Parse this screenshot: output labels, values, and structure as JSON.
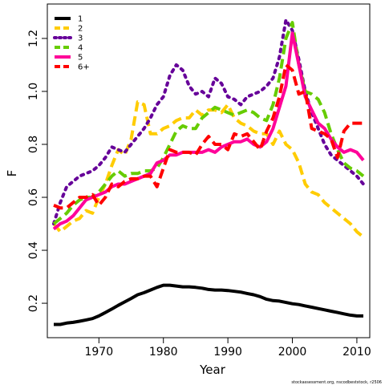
{
  "chart_data": {
    "type": "line",
    "title": "",
    "xlabel": "Year",
    "ylabel": "F",
    "xlim": [
      1962,
      2012
    ],
    "ylim": [
      0.07,
      1.33
    ],
    "x_ticks": [
      1970,
      1980,
      1990,
      2000,
      2010
    ],
    "y_ticks": [
      0.2,
      0.4,
      0.6,
      0.8,
      1.0,
      1.2
    ],
    "x_tick_labels": [
      "1970",
      "1980",
      "1990",
      "2000",
      "2010"
    ],
    "y_tick_labels": [
      "0.2",
      "0.4",
      "0.6",
      "0.8",
      "1.0",
      "1.2"
    ],
    "grid": false,
    "legend_position": "top-left",
    "credit": "stockassessment.org, nscodbeststock, r2506",
    "x": [
      1963,
      1964,
      1965,
      1966,
      1967,
      1968,
      1969,
      1970,
      1971,
      1972,
      1973,
      1974,
      1975,
      1976,
      1977,
      1978,
      1979,
      1980,
      1981,
      1982,
      1983,
      1984,
      1985,
      1986,
      1987,
      1988,
      1989,
      1990,
      1991,
      1992,
      1993,
      1994,
      1995,
      1996,
      1997,
      1998,
      1999,
      2000,
      2001,
      2002,
      2003,
      2004,
      2005,
      2006,
      2007,
      2008,
      2009,
      2010,
      2011
    ],
    "series": [
      {
        "name": "1",
        "color": "#000000",
        "dash": "solid",
        "width": 4,
        "values": [
          0.12,
          0.12,
          0.125,
          0.128,
          0.132,
          0.137,
          0.142,
          0.152,
          0.165,
          0.178,
          0.192,
          0.205,
          0.218,
          0.232,
          0.24,
          0.25,
          0.26,
          0.268,
          0.268,
          0.265,
          0.262,
          0.262,
          0.26,
          0.257,
          0.252,
          0.25,
          0.25,
          0.248,
          0.245,
          0.242,
          0.237,
          0.232,
          0.225,
          0.215,
          0.21,
          0.208,
          0.203,
          0.198,
          0.195,
          0.19,
          0.185,
          0.18,
          0.175,
          0.17,
          0.165,
          0.16,
          0.155,
          0.152,
          0.152
        ]
      },
      {
        "name": "2",
        "color": "#ffcc00",
        "dash": "dashed",
        "width": 4,
        "values": [
          0.5,
          0.47,
          0.49,
          0.51,
          0.52,
          0.55,
          0.54,
          0.6,
          0.65,
          0.72,
          0.78,
          0.76,
          0.82,
          0.96,
          0.95,
          0.84,
          0.84,
          0.86,
          0.87,
          0.89,
          0.9,
          0.9,
          0.93,
          0.91,
          0.93,
          0.93,
          0.92,
          0.95,
          0.9,
          0.88,
          0.87,
          0.85,
          0.84,
          0.84,
          0.8,
          0.85,
          0.8,
          0.78,
          0.73,
          0.65,
          0.62,
          0.61,
          0.58,
          0.56,
          0.54,
          0.52,
          0.5,
          0.47,
          0.45
        ]
      },
      {
        "name": "3",
        "color": "#660099",
        "dash": "dotted",
        "width": 4,
        "values": [
          0.5,
          0.58,
          0.64,
          0.66,
          0.68,
          0.69,
          0.7,
          0.72,
          0.75,
          0.79,
          0.78,
          0.77,
          0.8,
          0.83,
          0.86,
          0.9,
          0.95,
          0.98,
          1.06,
          1.1,
          1.08,
          1.02,
          0.99,
          1.0,
          0.98,
          1.05,
          1.03,
          0.98,
          0.97,
          0.95,
          0.98,
          0.99,
          1.0,
          1.02,
          1.05,
          1.13,
          1.27,
          1.23,
          1.12,
          1.0,
          0.92,
          0.86,
          0.8,
          0.76,
          0.74,
          0.72,
          0.7,
          0.68,
          0.65
        ]
      },
      {
        "name": "4",
        "color": "#66cc00",
        "dash": "dashed",
        "width": 4,
        "values": [
          0.5,
          0.52,
          0.54,
          0.57,
          0.59,
          0.6,
          0.6,
          0.62,
          0.65,
          0.68,
          0.7,
          0.68,
          0.69,
          0.69,
          0.7,
          0.7,
          0.71,
          0.75,
          0.8,
          0.85,
          0.87,
          0.86,
          0.86,
          0.9,
          0.92,
          0.94,
          0.93,
          0.92,
          0.91,
          0.92,
          0.93,
          0.92,
          0.9,
          0.89,
          0.95,
          1.05,
          1.2,
          1.26,
          1.1,
          1.0,
          0.99,
          0.97,
          0.92,
          0.84,
          0.78,
          0.73,
          0.71,
          0.7,
          0.68
        ]
      },
      {
        "name": "5",
        "color": "#ff0099",
        "dash": "solid",
        "width": 4,
        "values": [
          0.48,
          0.5,
          0.51,
          0.53,
          0.56,
          0.59,
          0.6,
          0.61,
          0.62,
          0.64,
          0.65,
          0.65,
          0.66,
          0.67,
          0.68,
          0.69,
          0.73,
          0.74,
          0.76,
          0.76,
          0.77,
          0.77,
          0.77,
          0.77,
          0.78,
          0.77,
          0.79,
          0.8,
          0.81,
          0.81,
          0.82,
          0.8,
          0.79,
          0.81,
          0.86,
          0.94,
          1.02,
          1.22,
          1.1,
          0.98,
          0.93,
          0.88,
          0.86,
          0.82,
          0.79,
          0.77,
          0.78,
          0.77,
          0.74
        ]
      },
      {
        "name": "6+",
        "color": "#ff0000",
        "dash": "dashed",
        "width": 4,
        "values": [
          0.57,
          0.56,
          0.56,
          0.58,
          0.6,
          0.6,
          0.61,
          0.57,
          0.6,
          0.65,
          0.64,
          0.66,
          0.67,
          0.67,
          0.68,
          0.68,
          0.64,
          0.71,
          0.78,
          0.77,
          0.77,
          0.77,
          0.76,
          0.8,
          0.83,
          0.8,
          0.8,
          0.78,
          0.84,
          0.83,
          0.84,
          0.81,
          0.78,
          0.85,
          0.9,
          0.98,
          1.1,
          1.08,
          0.99,
          1.0,
          0.86,
          0.85,
          0.84,
          0.82,
          0.75,
          0.85,
          0.88,
          0.88,
          0.88
        ]
      }
    ]
  }
}
